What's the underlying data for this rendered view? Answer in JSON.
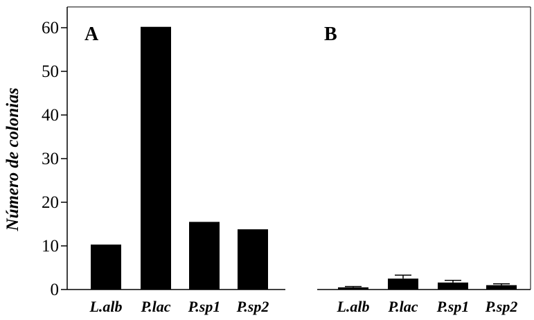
{
  "chart_data": [
    {
      "type": "bar",
      "panel_label": "A",
      "categories": [
        "L.alb",
        "P.lac",
        "P.sp1",
        "P.sp2"
      ],
      "values": [
        10.3,
        60.2,
        15.5,
        13.8
      ],
      "errors": [
        0,
        0,
        0,
        0
      ],
      "ylabel": "Número de colonias",
      "yticks": [
        "0",
        "10",
        "20",
        "30",
        "40",
        "50",
        "60"
      ],
      "ylim": [
        0,
        65
      ],
      "bar_color": "#000000"
    },
    {
      "type": "bar",
      "panel_label": "B",
      "categories": [
        "L.alb",
        "P.lac",
        "P.sp1",
        "P.sp2"
      ],
      "values": [
        0.5,
        2.5,
        1.6,
        1.0
      ],
      "errors": [
        0.2,
        0.8,
        0.5,
        0.3
      ],
      "ylim": [
        0,
        65
      ],
      "bar_color": "#000000"
    }
  ]
}
